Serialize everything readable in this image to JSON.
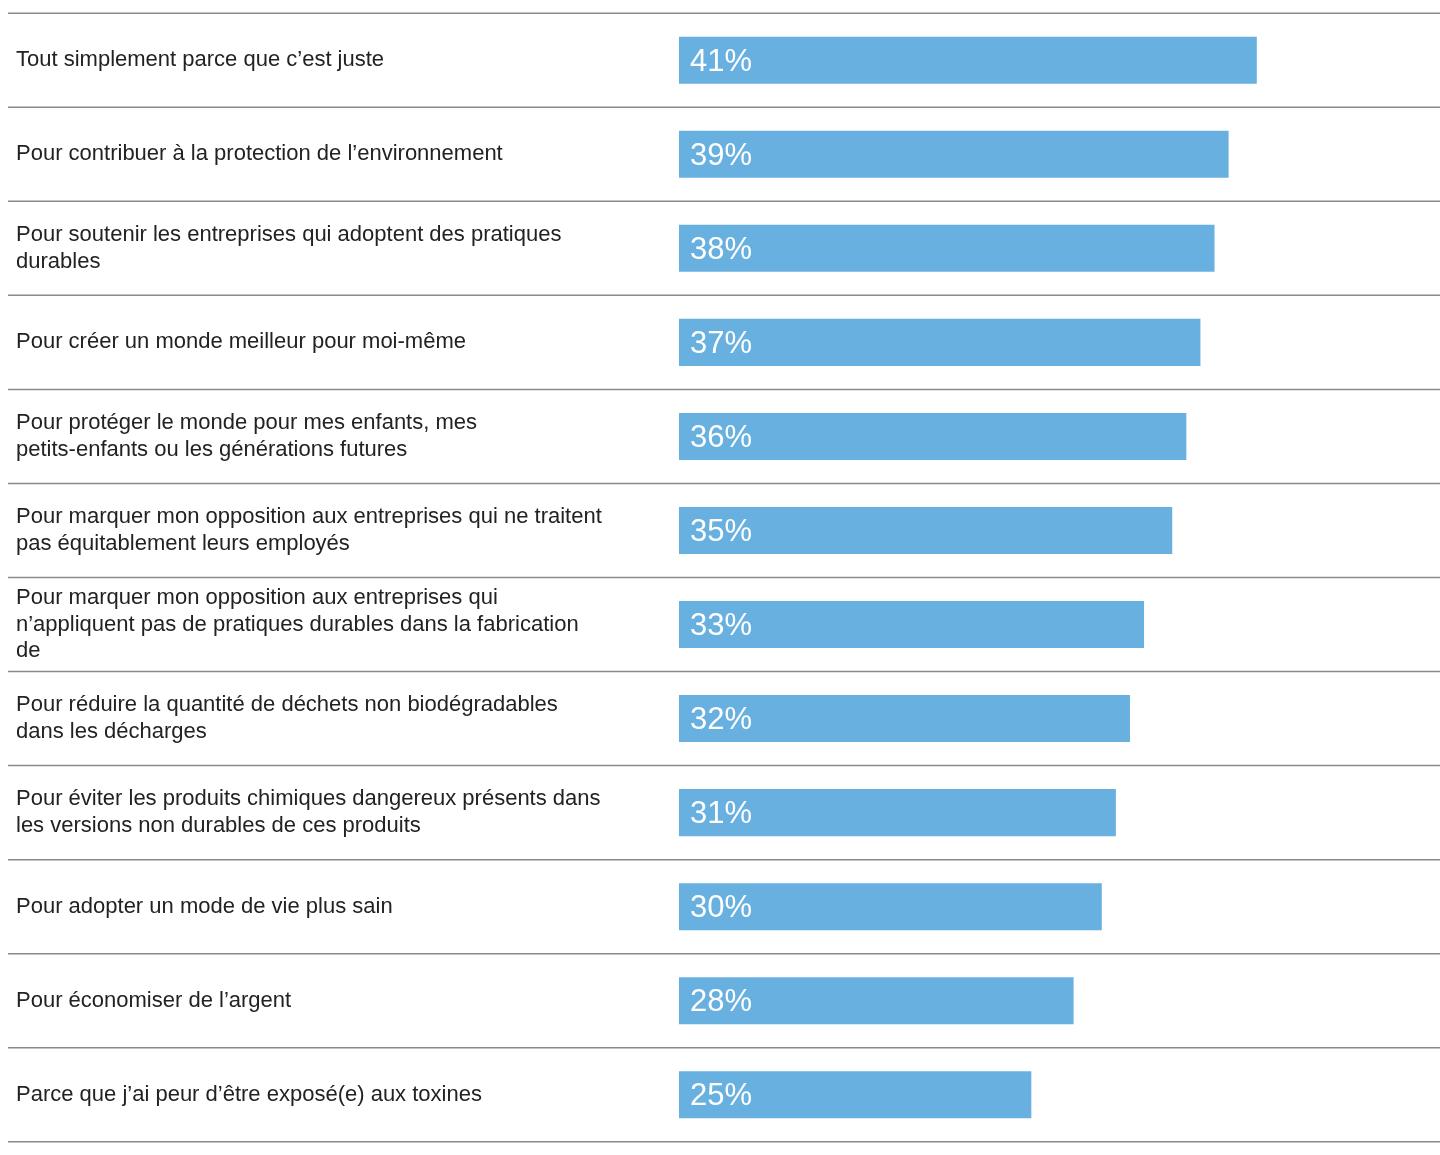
{
  "chart_data": {
    "type": "bar",
    "orientation": "horizontal",
    "categories": [
      "Tout simplement parce que c’est juste",
      "Pour contribuer à la protection de l’environnement",
      "Pour soutenir les entreprises qui adoptent des pratiques durables",
      "Pour créer un monde meilleur pour moi-même",
      "Pour protéger le monde pour mes enfants, mes petits-enfants ou les générations futures",
      "Pour marquer mon opposition aux entreprises qui ne traitent pas équitablement leurs employés",
      "Pour marquer mon opposition aux entreprises qui n’appliquent pas de pratiques durables dans la fabrication de",
      "Pour réduire la quantité de déchets non biodégradables dans les décharges",
      "Pour éviter les produits chimiques dangereux présents dans les versions non durables de ces produits",
      "Pour adopter un mode de vie plus sain",
      "Pour économiser de l’argent",
      "Parce que j’ai peur d’être exposé(e) aux toxines"
    ],
    "values": [
      41,
      39,
      38,
      37,
      36,
      35,
      33,
      32,
      31,
      30,
      28,
      25
    ],
    "value_labels": [
      "41%",
      "39%",
      "38%",
      "37%",
      "36%",
      "35%",
      "33%",
      "32%",
      "31%",
      "30%",
      "28%",
      "25%"
    ],
    "color": "#68b0e0",
    "xlim": [
      0,
      54
    ],
    "grid": "y",
    "tick_labels": "y",
    "legend": false
  }
}
